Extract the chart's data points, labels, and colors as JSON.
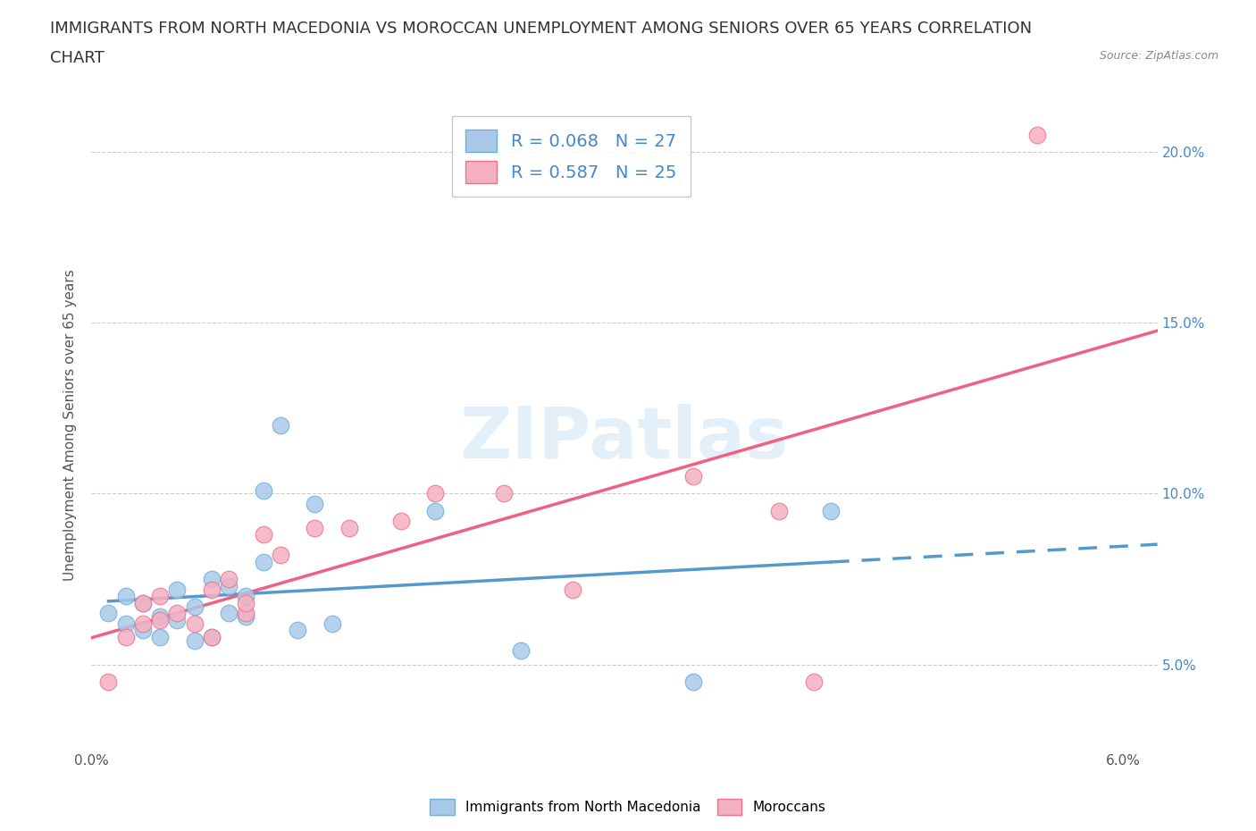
{
  "title_line1": "IMMIGRANTS FROM NORTH MACEDONIA VS MOROCCAN UNEMPLOYMENT AMONG SENIORS OVER 65 YEARS CORRELATION",
  "title_line2": "CHART",
  "source": "Source: ZipAtlas.com",
  "ylabel": "Unemployment Among Seniors over 65 years",
  "x_min": 0.0,
  "x_max": 0.062,
  "y_min": 0.025,
  "y_max": 0.215,
  "x_ticks": [
    0.0,
    0.01,
    0.02,
    0.03,
    0.04,
    0.05,
    0.06
  ],
  "x_tick_labels": [
    "0.0%",
    "",
    "",
    "",
    "",
    "",
    "6.0%"
  ],
  "y_ticks": [
    0.05,
    0.1,
    0.15,
    0.2
  ],
  "y_tick_labels_right": [
    "5.0%",
    "10.0%",
    "15.0%",
    "20.0%"
  ],
  "blue_R": 0.068,
  "blue_N": 27,
  "pink_R": 0.587,
  "pink_N": 25,
  "blue_color": "#aac9e8",
  "pink_color": "#f5b0c0",
  "blue_edge_color": "#6daee0",
  "pink_edge_color": "#f07090",
  "blue_line_color": "#5599cc",
  "pink_line_color": "#f06080",
  "right_axis_color": "#4488cc",
  "legend_label1": "Immigrants from North Macedonia",
  "legend_label2": "Moroccans",
  "watermark_text": "ZIPatlas",
  "blue_scatter_x": [
    0.001,
    0.002,
    0.002,
    0.003,
    0.003,
    0.004,
    0.004,
    0.005,
    0.005,
    0.006,
    0.006,
    0.007,
    0.007,
    0.008,
    0.008,
    0.009,
    0.009,
    0.01,
    0.01,
    0.011,
    0.012,
    0.013,
    0.014,
    0.02,
    0.025,
    0.035,
    0.043
  ],
  "blue_scatter_y": [
    0.065,
    0.062,
    0.07,
    0.068,
    0.06,
    0.064,
    0.058,
    0.063,
    0.072,
    0.057,
    0.067,
    0.058,
    0.075,
    0.073,
    0.065,
    0.064,
    0.07,
    0.08,
    0.101,
    0.12,
    0.06,
    0.097,
    0.062,
    0.095,
    0.054,
    0.045,
    0.095
  ],
  "pink_scatter_x": [
    0.001,
    0.002,
    0.003,
    0.003,
    0.004,
    0.004,
    0.005,
    0.006,
    0.007,
    0.007,
    0.008,
    0.009,
    0.009,
    0.01,
    0.011,
    0.013,
    0.015,
    0.018,
    0.02,
    0.024,
    0.028,
    0.035,
    0.04,
    0.042,
    0.055
  ],
  "pink_scatter_y": [
    0.045,
    0.058,
    0.062,
    0.068,
    0.063,
    0.07,
    0.065,
    0.062,
    0.058,
    0.072,
    0.075,
    0.065,
    0.068,
    0.088,
    0.082,
    0.09,
    0.09,
    0.092,
    0.1,
    0.1,
    0.072,
    0.105,
    0.095,
    0.045,
    0.205
  ],
  "grid_color": "#cccccc",
  "background_color": "#ffffff",
  "title_fontsize": 13,
  "axis_label_fontsize": 11,
  "tick_label_fontsize": 11
}
